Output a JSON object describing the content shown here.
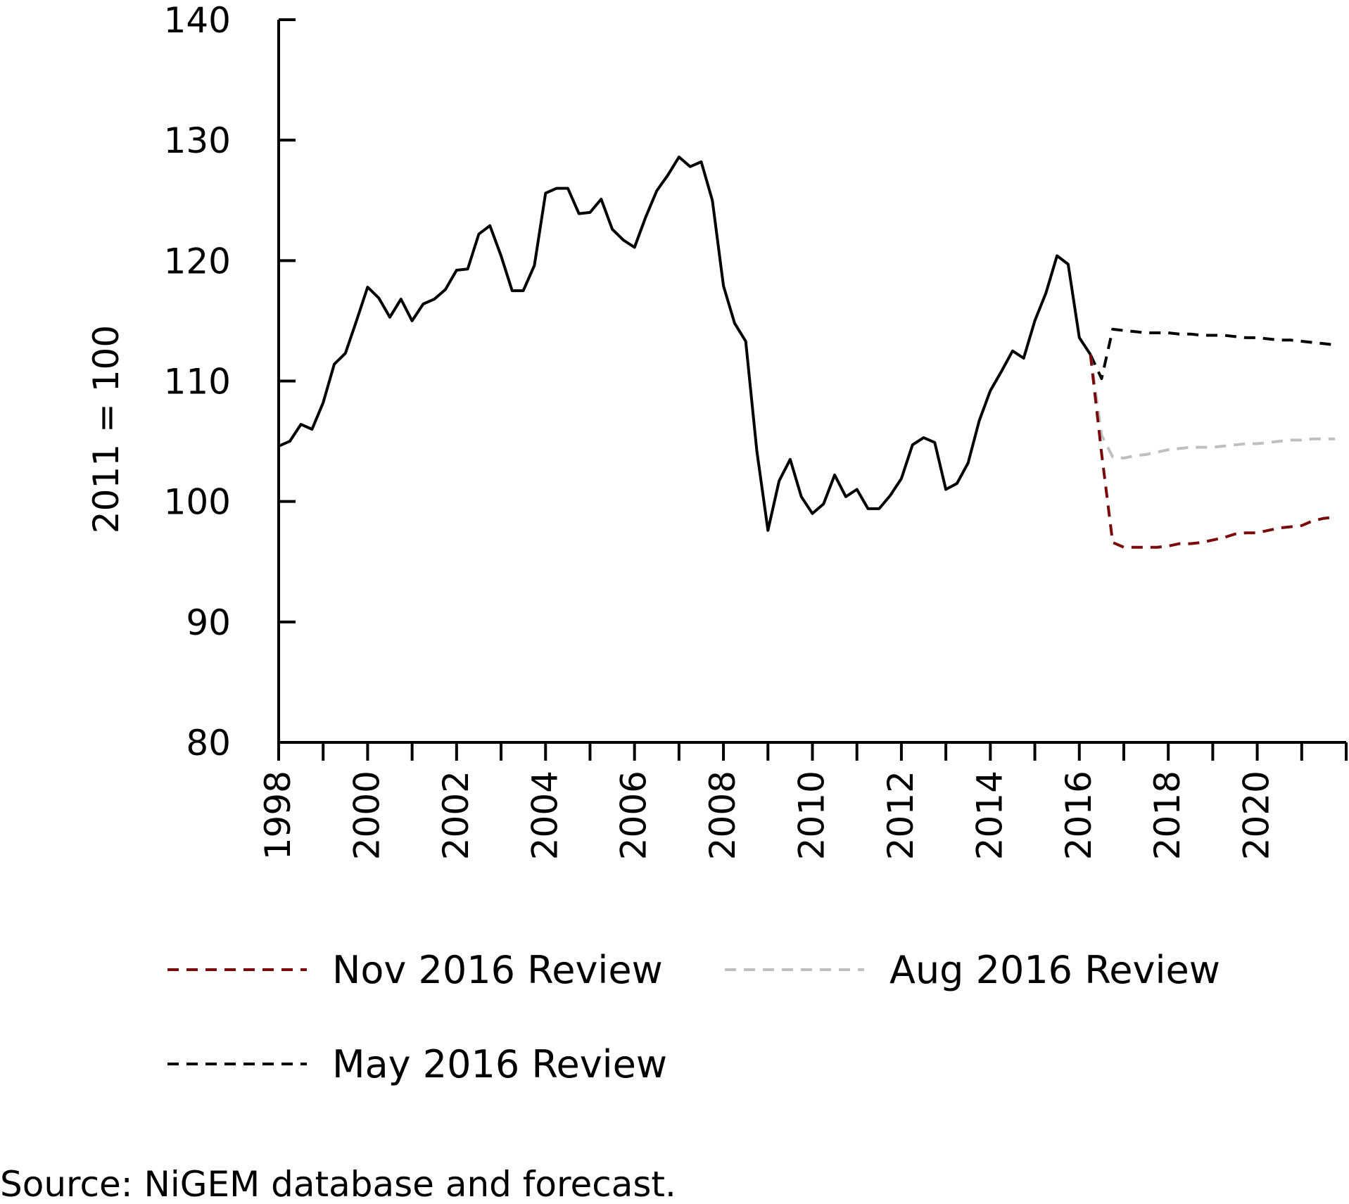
{
  "chart_data": {
    "type": "line",
    "ylabel": "2011 = 100",
    "ylim": [
      80,
      140
    ],
    "yticks": [
      80,
      90,
      100,
      110,
      120,
      130,
      140
    ],
    "xlim": [
      1998,
      2022
    ],
    "xticks": [
      1998,
      2000,
      2002,
      2004,
      2006,
      2008,
      2010,
      2012,
      2014,
      2016,
      2018,
      2020
    ],
    "grid": false,
    "legend_position": "bottom",
    "source": "Source: NiGEM database and forecast.",
    "colors": {
      "historical": "#000000",
      "nov": "#7a0a0a",
      "aug": "#bfbfbf",
      "may": "#000000"
    },
    "series": [
      {
        "key": "historical",
        "style": "solid",
        "x": [
          1998.0,
          1998.25,
          1998.5,
          1998.75,
          1999.0,
          1999.25,
          1999.5,
          1999.75,
          2000.0,
          2000.25,
          2000.5,
          2000.75,
          2001.0,
          2001.25,
          2001.5,
          2001.75,
          2002.0,
          2002.25,
          2002.5,
          2002.75,
          2003.0,
          2003.25,
          2003.5,
          2003.75,
          2004.0,
          2004.25,
          2004.5,
          2004.75,
          2005.0,
          2005.25,
          2005.5,
          2005.75,
          2006.0,
          2006.25,
          2006.5,
          2006.75,
          2007.0,
          2007.25,
          2007.5,
          2007.75,
          2008.0,
          2008.25,
          2008.5,
          2008.75,
          2009.0,
          2009.25,
          2009.5,
          2009.75,
          2010.0,
          2010.25,
          2010.5,
          2010.75,
          2011.0,
          2011.25,
          2011.5,
          2011.75,
          2012.0,
          2012.25,
          2012.5,
          2012.75,
          2013.0,
          2013.25,
          2013.5,
          2013.75,
          2014.0,
          2014.25,
          2014.5,
          2014.75,
          2015.0,
          2015.25,
          2015.5,
          2015.75,
          2016.0,
          2016.25
        ],
        "values": [
          104.6,
          105.0,
          106.4,
          106.0,
          108.2,
          111.4,
          112.3,
          115.0,
          117.8,
          116.9,
          115.3,
          116.8,
          115.0,
          116.4,
          116.8,
          117.6,
          119.2,
          119.3,
          122.2,
          122.9,
          120.4,
          117.5,
          117.5,
          119.6,
          125.6,
          126.0,
          126.0,
          123.9,
          124.0,
          125.1,
          122.6,
          121.7,
          121.1,
          123.6,
          125.8,
          127.1,
          128.6,
          127.8,
          128.2,
          125.0,
          117.9,
          114.8,
          113.3,
          104.2,
          97.6,
          101.7,
          103.5,
          100.4,
          99.0,
          99.8,
          102.2,
          100.4,
          101.0,
          99.4,
          99.4,
          100.5,
          101.9,
          104.7,
          105.3,
          104.9,
          101.0,
          101.5,
          103.2,
          106.7,
          109.2,
          110.8,
          112.5,
          111.9,
          115.0,
          117.3,
          120.4,
          119.7,
          113.6,
          112.2
        ]
      },
      {
        "key": "nov",
        "name": "Nov 2016 Review",
        "style": "dashed",
        "x": [
          2016.25,
          2016.5,
          2016.75,
          2017.0,
          2017.25,
          2017.5,
          2017.75,
          2018.0,
          2018.25,
          2018.5,
          2018.75,
          2019.0,
          2019.25,
          2019.5,
          2019.75,
          2020.0,
          2020.25,
          2020.5,
          2020.75,
          2021.0,
          2021.25,
          2021.5,
          2021.75
        ],
        "values": [
          112.2,
          104.0,
          96.6,
          96.2,
          96.2,
          96.2,
          96.2,
          96.3,
          96.5,
          96.5,
          96.6,
          96.8,
          97.0,
          97.3,
          97.4,
          97.4,
          97.6,
          97.8,
          97.9,
          98.0,
          98.4,
          98.6,
          98.7
        ]
      },
      {
        "key": "aug",
        "name": "Aug 2016 Review",
        "style": "dashed",
        "x": [
          2016.25,
          2016.5,
          2016.75,
          2017.0,
          2017.25,
          2017.5,
          2017.75,
          2018.0,
          2018.25,
          2018.5,
          2018.75,
          2019.0,
          2019.25,
          2019.5,
          2019.75,
          2020.0,
          2020.25,
          2020.5,
          2020.75,
          2021.0,
          2021.25,
          2021.5,
          2021.75
        ],
        "values": [
          112.2,
          105.5,
          103.7,
          103.6,
          103.8,
          103.9,
          104.1,
          104.3,
          104.4,
          104.5,
          104.5,
          104.5,
          104.6,
          104.7,
          104.8,
          104.8,
          104.9,
          105.0,
          105.1,
          105.1,
          105.2,
          105.2,
          105.2
        ]
      },
      {
        "key": "may",
        "name": "May 2016 Review",
        "style": "dashed",
        "x": [
          2016.25,
          2016.5,
          2016.75,
          2017.0,
          2017.25,
          2017.5,
          2017.75,
          2018.0,
          2018.25,
          2018.5,
          2018.75,
          2019.0,
          2019.25,
          2019.5,
          2019.75,
          2020.0,
          2020.25,
          2020.5,
          2020.75,
          2021.0,
          2021.25,
          2021.5,
          2021.75
        ],
        "values": [
          112.2,
          110.2,
          114.3,
          114.2,
          114.1,
          114.0,
          114.0,
          114.0,
          113.9,
          113.9,
          113.8,
          113.8,
          113.8,
          113.7,
          113.6,
          113.6,
          113.5,
          113.4,
          113.4,
          113.3,
          113.2,
          113.1,
          113.0
        ]
      }
    ],
    "legend": [
      {
        "key": "nov",
        "label": "Nov 2016 Review"
      },
      {
        "key": "aug",
        "label": "Aug 2016 Review"
      },
      {
        "key": "may",
        "label": "May 2016 Review"
      }
    ]
  }
}
